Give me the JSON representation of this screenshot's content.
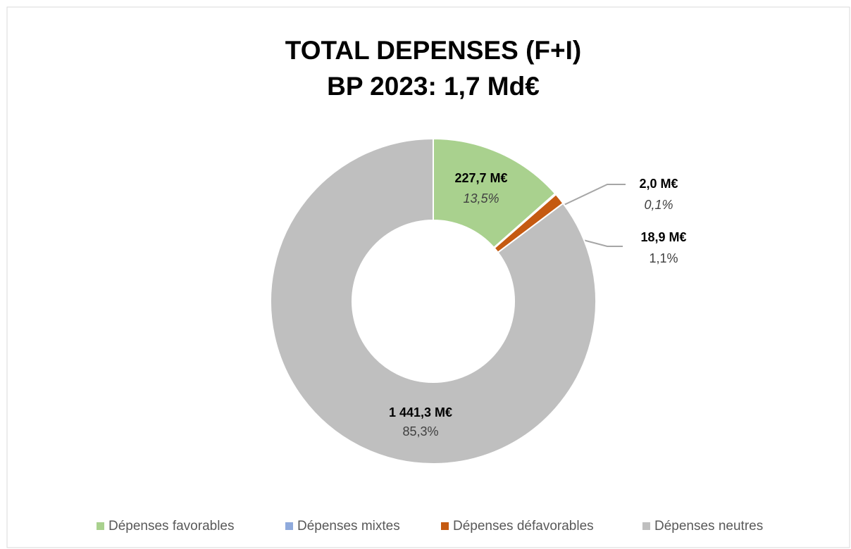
{
  "chart_data": {
    "type": "donut",
    "title": [
      "TOTAL DEPENSES (F+I)",
      "BP 2023: 1,7 Md€"
    ],
    "categories": [
      "Dépenses favorables",
      "Dépenses mixtes",
      "Dépenses défavorables",
      "Dépenses neutres"
    ],
    "values": [
      227.7,
      2.0,
      18.9,
      1441.3
    ],
    "value_labels": [
      "227,7 M€",
      "2,0 M€",
      "18,9 M€",
      "1 441,3 M€"
    ],
    "percent_labels": [
      "13,5%",
      "0,1%",
      "1,1%",
      "85,3%"
    ],
    "colors": [
      "#a9d18e",
      "#8faadc",
      "#c55a11",
      "#bfbfbf"
    ],
    "legend": "bottom"
  }
}
